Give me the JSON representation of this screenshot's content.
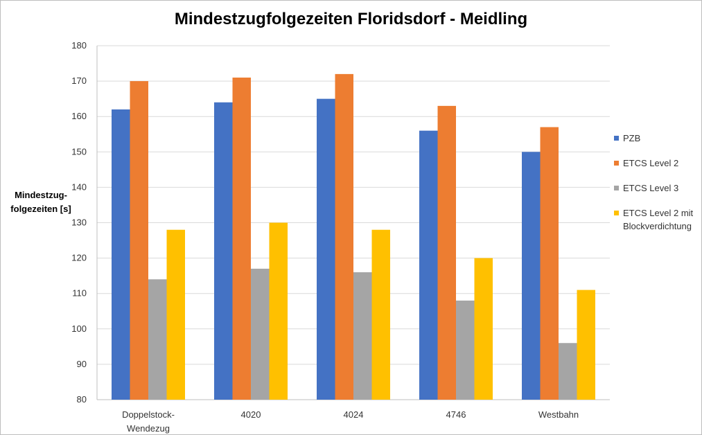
{
  "chart_data": {
    "type": "bar",
    "title": "Mindestzugfolgezeiten Floridsdorf - Meidling",
    "ylabel": "Mindestzug-folgezeiten [s]",
    "xlabel": "",
    "ylim": [
      80,
      180
    ],
    "yticks": [
      80,
      90,
      100,
      110,
      120,
      130,
      140,
      150,
      160,
      170,
      180
    ],
    "grid": true,
    "legend_position": "right",
    "categories": [
      [
        "Doppelstock-",
        "Wendezug"
      ],
      [
        "4020"
      ],
      [
        "4024"
      ],
      [
        "4746"
      ],
      [
        "Westbahn"
      ]
    ],
    "series": [
      {
        "name": "PZB",
        "color": "#4472c4",
        "values": [
          162,
          164,
          165,
          156,
          150
        ]
      },
      {
        "name": "ETCS Level 2",
        "color": "#ed7d31",
        "values": [
          170,
          171,
          172,
          163,
          157
        ]
      },
      {
        "name": "ETCS Level 3",
        "color": "#a5a5a5",
        "values": [
          114,
          117,
          116,
          108,
          96
        ]
      },
      {
        "name": "ETCS Level 2 mit Blockverdichtung",
        "color": "#ffc000",
        "values": [
          128,
          130,
          128,
          120,
          111
        ]
      }
    ]
  },
  "ylabel_lines": [
    "Mindestzug-",
    "folgezeiten [s]"
  ],
  "legend_lines": [
    [
      "PZB"
    ],
    [
      "ETCS Level 2"
    ],
    [
      "ETCS Level 3"
    ],
    [
      "ETCS Level 2 mit",
      "Blockverdichtung"
    ]
  ],
  "colors": {
    "grid": "#d9d9d9",
    "axis": "#bfbfbf",
    "text": "#333333"
  }
}
